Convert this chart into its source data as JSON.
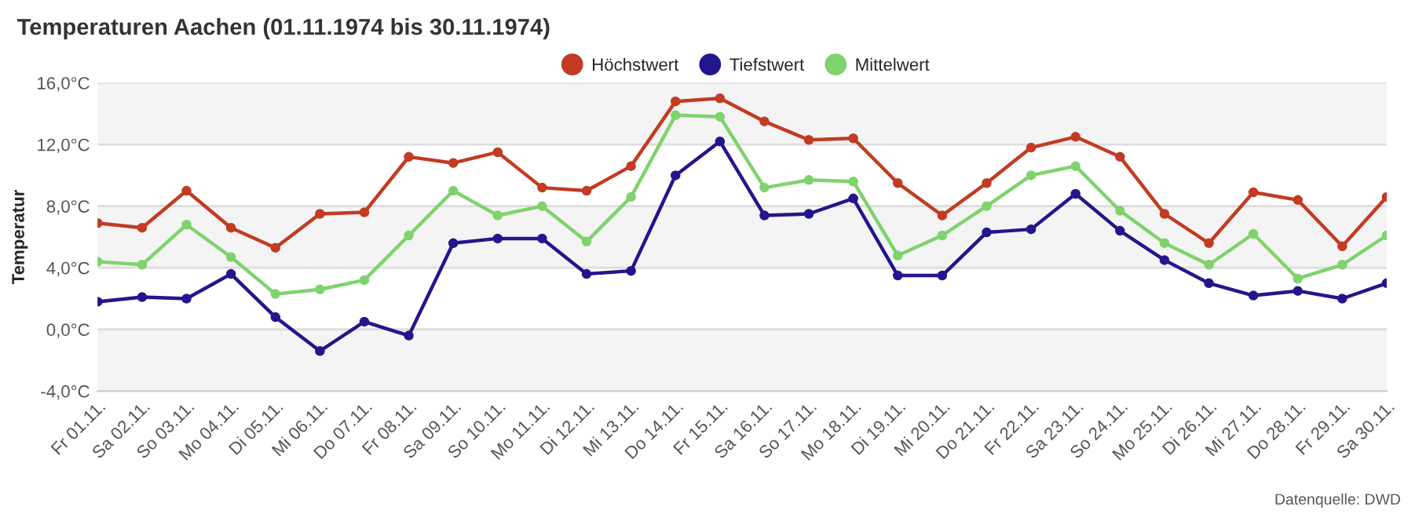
{
  "chart_data": {
    "type": "line",
    "title": "Temperaturen Aachen (01.11.1974 bis 30.11.1974)",
    "ylabel": "Temperatur",
    "categories": [
      "Fr 01.11.",
      "Sa 02.11.",
      "So 03.11.",
      "Mo 04.11.",
      "Di 05.11.",
      "Mi 06.11.",
      "Do 07.11.",
      "Fr 08.11.",
      "Sa 09.11.",
      "So 10.11.",
      "Mo 11.11.",
      "Di 12.11.",
      "Mi 13.11.",
      "Do 14.11.",
      "Fr 15.11.",
      "Sa 16.11.",
      "So 17.11.",
      "Mo 18.11.",
      "Di 19.11.",
      "Mi 20.11.",
      "Do 21.11.",
      "Fr 22.11.",
      "Sa 23.11.",
      "So 24.11.",
      "Mo 25.11.",
      "Di 26.11.",
      "Mi 27.11.",
      "Do 28.11.",
      "Fr 29.11.",
      "Sa 30.11."
    ],
    "series": [
      {
        "name": "Höchstwert",
        "color": "#c23b22",
        "values": [
          6.9,
          6.6,
          9.0,
          6.6,
          5.3,
          7.5,
          7.6,
          11.2,
          10.8,
          11.5,
          9.2,
          9.0,
          10.6,
          14.8,
          15.0,
          13.5,
          12.3,
          12.4,
          9.5,
          7.4,
          9.5,
          11.8,
          12.5,
          11.2,
          7.5,
          5.6,
          8.9,
          8.4,
          5.4,
          8.6
        ]
      },
      {
        "name": "Tiefstwert",
        "color": "#23168c",
        "values": [
          1.8,
          2.1,
          2.0,
          3.6,
          0.8,
          -1.4,
          0.5,
          -0.4,
          5.6,
          5.9,
          5.9,
          3.6,
          3.8,
          10.0,
          12.2,
          7.4,
          7.5,
          8.5,
          3.5,
          3.5,
          6.3,
          6.5,
          8.8,
          6.4,
          4.5,
          3.0,
          2.2,
          2.5,
          2.0,
          3.0
        ]
      },
      {
        "name": "Mittelwert",
        "color": "#7ed36d",
        "values": [
          4.4,
          4.2,
          6.8,
          4.7,
          2.3,
          2.6,
          3.2,
          6.1,
          9.0,
          7.4,
          8.0,
          5.7,
          8.6,
          13.9,
          13.8,
          9.2,
          9.7,
          9.6,
          4.8,
          6.1,
          8.0,
          10.0,
          10.6,
          7.7,
          5.6,
          4.2,
          6.2,
          3.3,
          4.2,
          6.1
        ]
      }
    ],
    "ylim": [
      -4,
      16
    ],
    "yticks": [
      {
        "value": -4,
        "label": "-4,0°C"
      },
      {
        "value": 0,
        "label": "0,0°C"
      },
      {
        "value": 4,
        "label": "4,0°C"
      },
      {
        "value": 8,
        "label": "8,0°C"
      },
      {
        "value": 12,
        "label": "12,0°C"
      },
      {
        "value": 16,
        "label": "16,0°C"
      }
    ],
    "bands": [
      {
        "axis": "y",
        "from": 12,
        "to": 16,
        "color": "#f4f4f4"
      },
      {
        "axis": "y",
        "from": 4,
        "to": 8,
        "color": "#f4f4f4"
      },
      {
        "axis": "y",
        "from": -4,
        "to": 0,
        "color": "#f4f4f4"
      }
    ],
    "grid": "y",
    "legend": "top",
    "marker": "circle",
    "line_style": "solid",
    "annotations": [
      "Datenquelle: DWD"
    ]
  }
}
